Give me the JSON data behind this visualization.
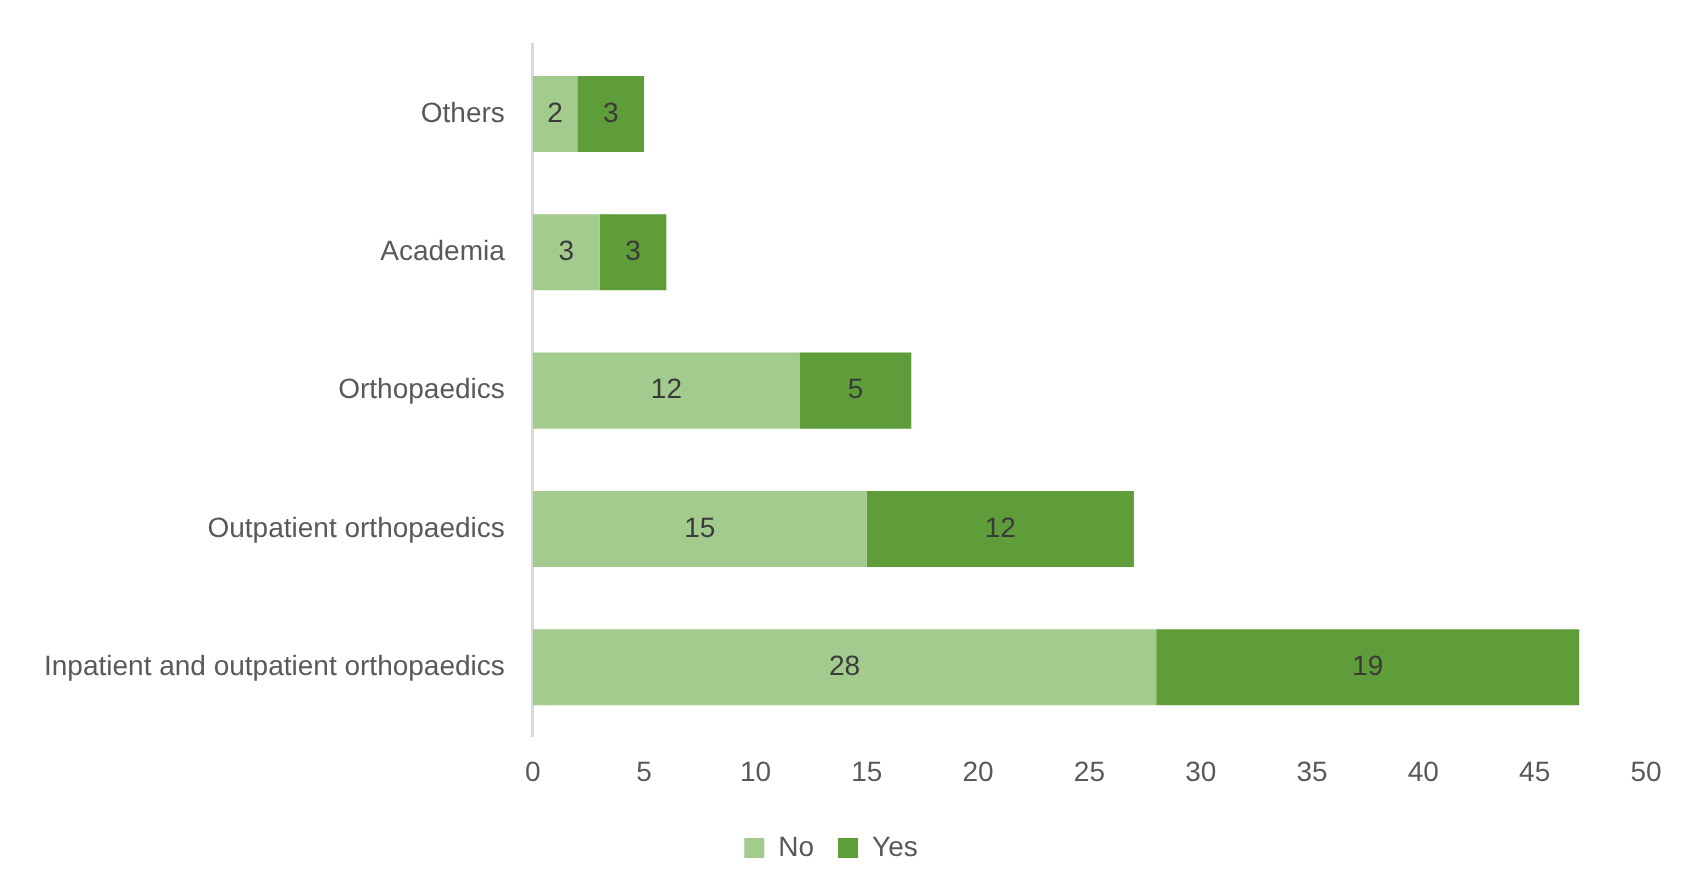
{
  "chart_data": {
    "type": "bar",
    "orientation": "horizontal",
    "stacked": true,
    "categories": [
      "Others",
      "Academia",
      "Orthopaedics",
      "Outpatient orthopaedics",
      "Inpatient and outpatient orthopaedics"
    ],
    "series": [
      {
        "name": "No",
        "color": "#a3cb8e",
        "values": [
          2,
          3,
          12,
          15,
          28
        ]
      },
      {
        "name": "Yes",
        "color": "#5f9c3a",
        "values": [
          3,
          3,
          5,
          12,
          19
        ]
      }
    ],
    "xlim": [
      0,
      50
    ],
    "xticks": [
      0,
      5,
      10,
      15,
      20,
      25,
      30,
      35,
      40,
      45,
      50
    ],
    "grid": false,
    "legend": "bottom",
    "data_labels": true
  }
}
